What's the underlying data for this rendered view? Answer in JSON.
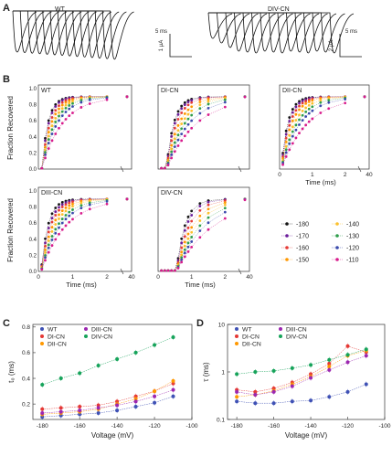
{
  "panels": [
    {
      "letter": "A"
    },
    {
      "letter": "B"
    },
    {
      "letter": "C"
    },
    {
      "letter": "D"
    }
  ],
  "colors": {
    "v-180": "#141414",
    "v-170": "#6a1b9a",
    "v-160": "#e53935",
    "v-150": "#ff9800",
    "v-140": "#fbc02d",
    "v-130": "#2e9d4a",
    "v-120": "#3949ab",
    "v-110": "#d81b8c",
    "WT": "#3f51b5",
    "DI-CN": "#e53935",
    "DII-CN": "#ff9800",
    "DIII-CN": "#9c27b0",
    "DIV-CN": "#16a35a"
  },
  "chart_data": [
    {
      "id": "A",
      "type": "line",
      "traces": [
        {
          "title": "WT",
          "scalebar_time": "5 ms",
          "scalebar_current": "1 µA"
        },
        {
          "title": "DIV-CN",
          "scalebar_time": "5 ms",
          "scalebar_current": "2 µA"
        }
      ]
    },
    {
      "id": "B",
      "type": "scatter",
      "ylabel": "Fraction Recovered",
      "xlabel": "Time (ms)",
      "xticks": [
        "0",
        "1",
        "2",
        "40"
      ],
      "yticks": [
        "0.0",
        "0.2",
        "0.4",
        "0.6",
        "0.8",
        "1.0"
      ],
      "ylim": [
        0,
        1
      ],
      "xlim": [
        0,
        2.4
      ],
      "legend": {
        "entries": [
          "-180",
          "-170",
          "-160",
          "-150",
          "-140",
          "-130",
          "-120",
          "-110"
        ],
        "placement": "bottom-right"
      },
      "subplots": [
        {
          "title": "WT",
          "tau": [
            0.18,
            0.2,
            0.24,
            0.28,
            0.33,
            0.38,
            0.45,
            0.6
          ],
          "x0": 0.1
        },
        {
          "title": "DI-CN",
          "tau": [
            0.22,
            0.25,
            0.3,
            0.38,
            0.46,
            0.55,
            0.68,
            0.9
          ],
          "x0": 0.25
        },
        {
          "title": "DII-CN",
          "tau": [
            0.2,
            0.23,
            0.27,
            0.32,
            0.4,
            0.48,
            0.58,
            0.8
          ],
          "x0": 0.05
        },
        {
          "title": "DIII-CN",
          "tau": [
            0.2,
            0.24,
            0.28,
            0.34,
            0.4,
            0.48,
            0.56,
            0.72
          ],
          "x0": 0.08
        },
        {
          "title": "DIV-CN",
          "tau": [
            0.25,
            0.3,
            0.38,
            0.48,
            0.58,
            0.7,
            0.85,
            1.1
          ],
          "x0": 0.55
        }
      ]
    },
    {
      "id": "C",
      "type": "line",
      "xlabel": "Voltage (mV)",
      "ylabel": "t₀ (ms)",
      "xlim": [
        -185,
        -100
      ],
      "ylim": [
        0.08,
        0.82
      ],
      "xticks": [
        "-180",
        "-160",
        "-140",
        "-120",
        "-100"
      ],
      "yticks": [
        "0.2",
        "0.4",
        "0.6",
        "0.8"
      ],
      "x": [
        -180,
        -170,
        -160,
        -150,
        -140,
        -130,
        -120,
        -110
      ],
      "series": [
        {
          "name": "WT",
          "values": [
            0.1,
            0.11,
            0.12,
            0.13,
            0.15,
            0.18,
            0.21,
            0.26
          ]
        },
        {
          "name": "DI-CN",
          "values": [
            0.16,
            0.17,
            0.18,
            0.19,
            0.22,
            0.26,
            0.3,
            0.36
          ]
        },
        {
          "name": "DII-CN",
          "values": [
            0.12,
            0.13,
            0.14,
            0.16,
            0.2,
            0.24,
            0.3,
            0.38
          ]
        },
        {
          "name": "DIII-CN",
          "values": [
            0.13,
            0.14,
            0.15,
            0.17,
            0.19,
            0.22,
            0.26,
            0.31
          ]
        },
        {
          "name": "DIV-CN",
          "values": [
            0.35,
            0.4,
            0.44,
            0.5,
            0.55,
            0.6,
            0.66,
            0.72
          ]
        }
      ]
    },
    {
      "id": "D",
      "type": "line",
      "log_y": true,
      "xlabel": "Voltage (mV)",
      "ylabel": "τ (ms)",
      "xlim": [
        -185,
        -100
      ],
      "ylim": [
        0.1,
        10
      ],
      "xticks": [
        "-180",
        "-160",
        "-140",
        "-120",
        "-100"
      ],
      "yticks": [
        "0.1",
        "1",
        "10"
      ],
      "x": [
        -180,
        -170,
        -160,
        -150,
        -140,
        -130,
        -120,
        -110
      ],
      "series": [
        {
          "name": "WT",
          "values": [
            0.24,
            0.22,
            0.22,
            0.24,
            0.25,
            0.3,
            0.38,
            0.55
          ]
        },
        {
          "name": "DI-CN",
          "values": [
            0.42,
            0.38,
            0.45,
            0.6,
            0.9,
            1.5,
            3.5,
            2.6
          ]
        },
        {
          "name": "DII-CN",
          "values": [
            0.3,
            0.33,
            0.4,
            0.55,
            0.8,
            1.3,
            2.2,
            2.8
          ]
        },
        {
          "name": "DIII-CN",
          "values": [
            0.38,
            0.33,
            0.38,
            0.5,
            0.75,
            1.1,
            1.6,
            2.2
          ]
        },
        {
          "name": "DIV-CN",
          "values": [
            0.9,
            1.0,
            1.05,
            1.2,
            1.4,
            1.8,
            2.3,
            3.0
          ]
        }
      ]
    }
  ]
}
